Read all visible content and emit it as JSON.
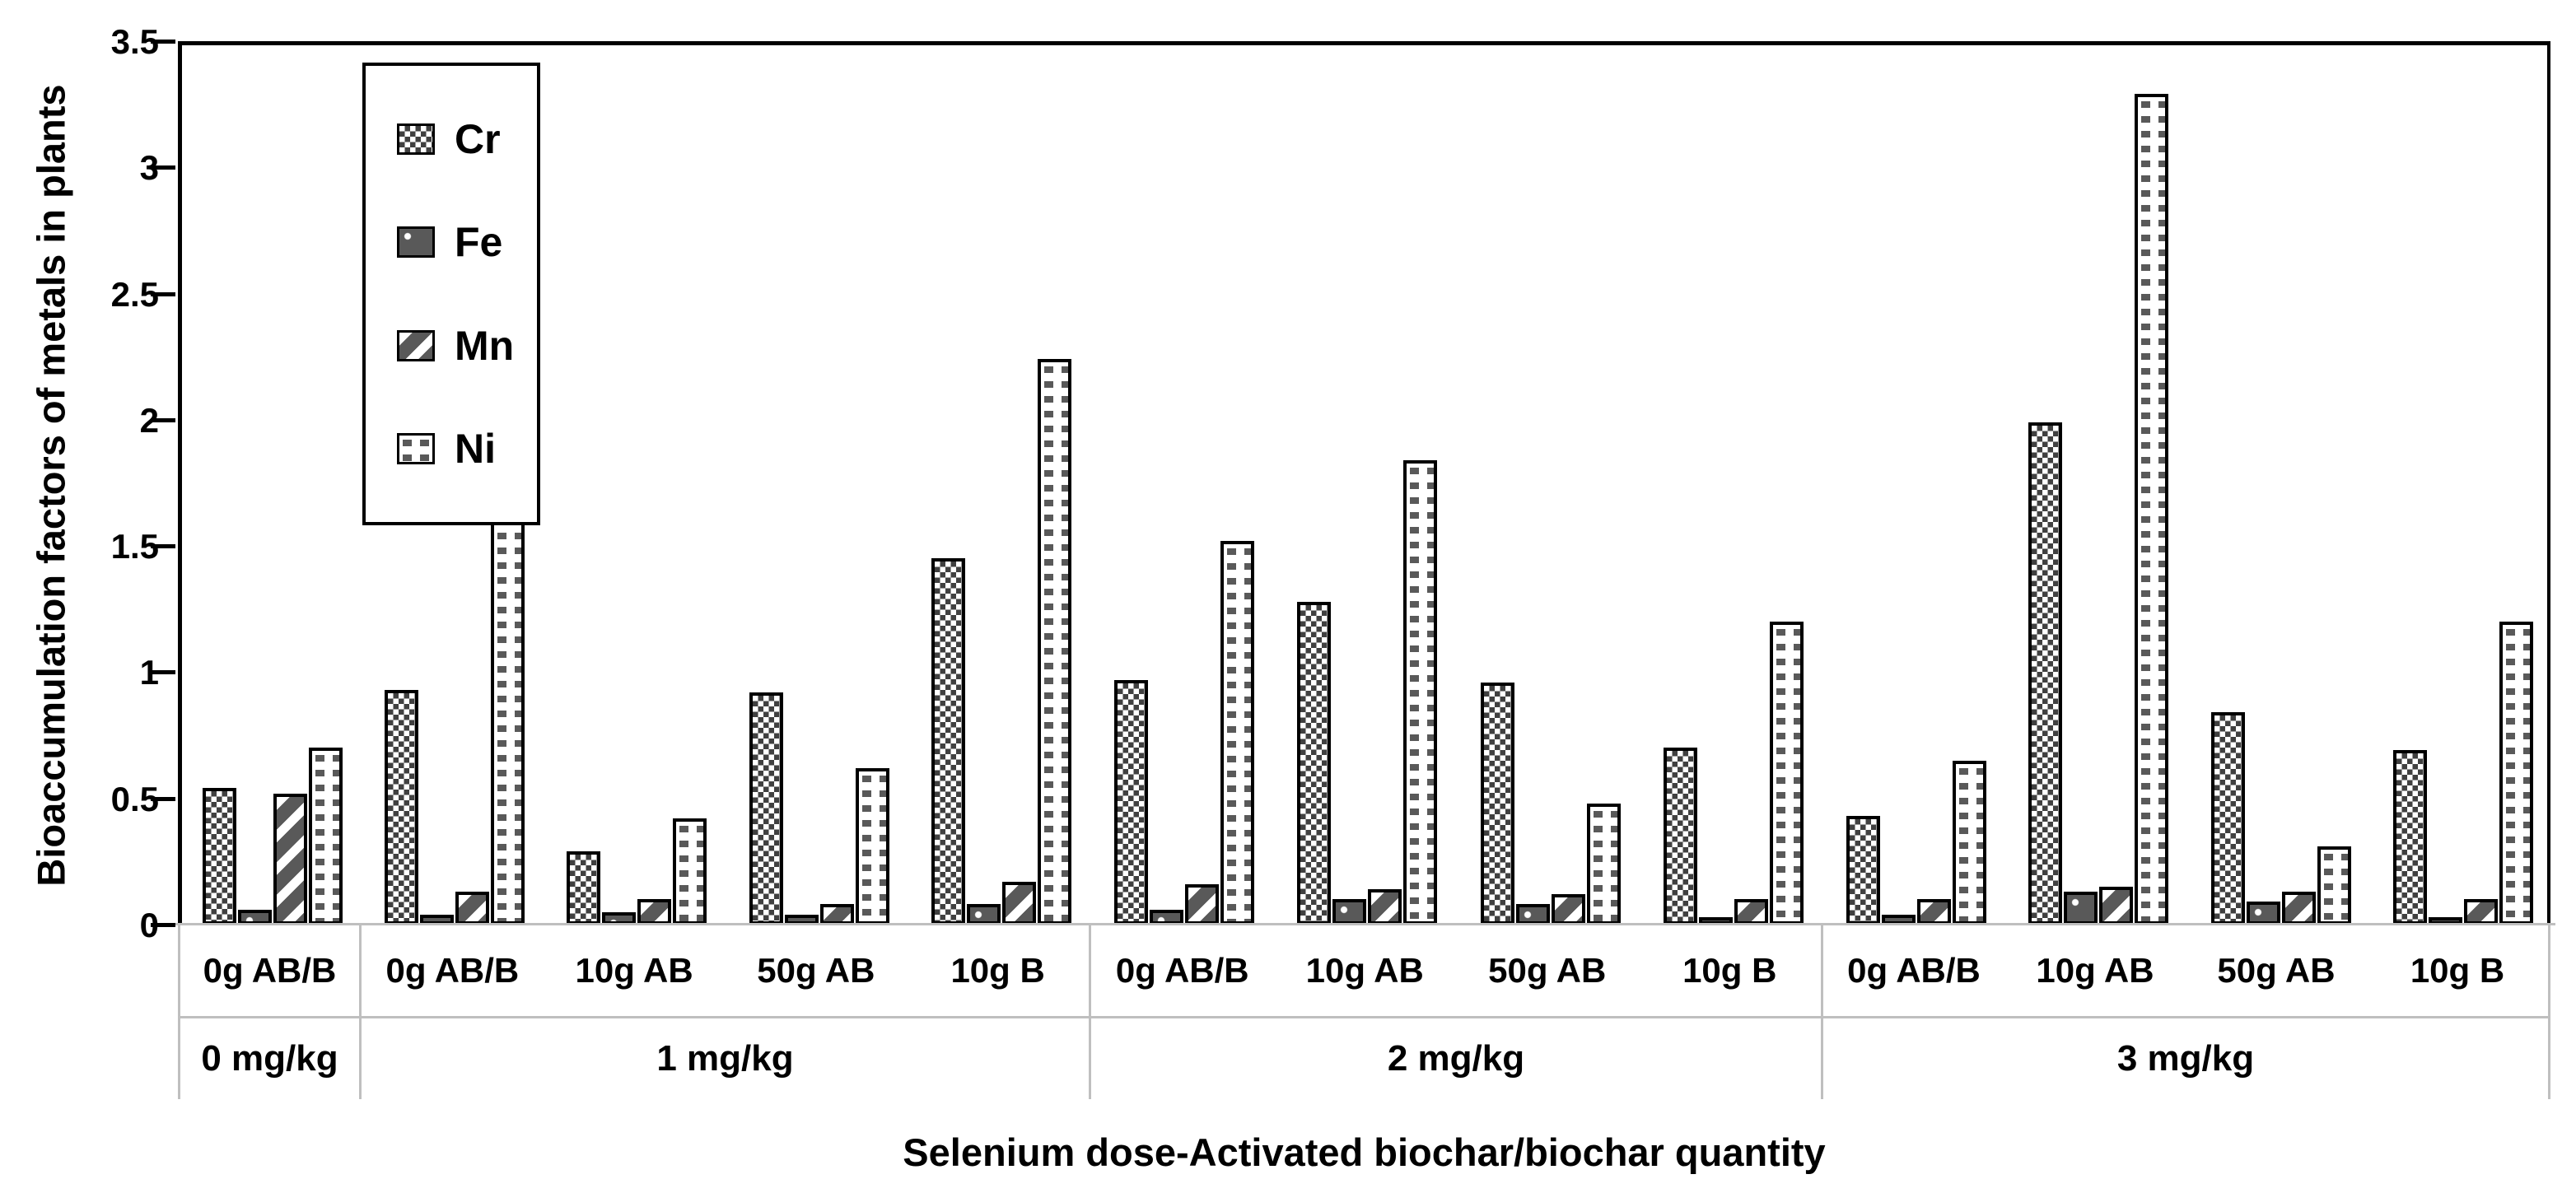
{
  "colors": {
    "black": "#000000",
    "dark_pattern_gray": "#595959",
    "checker_gray": "#404040",
    "grid_gray": "#bfbfbf",
    "background": "#ffffff"
  },
  "chart_data": {
    "type": "bar",
    "title": "",
    "xlabel": "Selenium dose-Activated biochar/biochar quantity",
    "ylabel": "Bioaccumulation factors of metals in plants",
    "ylim": [
      0,
      3.5
    ],
    "ytick_labels": [
      "3.5",
      "3",
      "2.5",
      "2",
      "1.5",
      "1",
      "0.5",
      "0"
    ],
    "ytick_values": [
      3.5,
      3,
      2.5,
      2,
      1.5,
      1,
      0.5,
      0
    ],
    "grid": "off",
    "legend_position": "upper-left-inside",
    "legend": [
      "Cr",
      "Fe",
      "Mn",
      "Ni"
    ],
    "legend_patterns": {
      "Cr": "fine-checkerboard",
      "Fe": "dark-gray-white-dots",
      "Mn": "thick-diagonal-stripes",
      "Ni": "sparse-square-dots"
    },
    "categories": [
      "0g AB/B",
      "0g AB/B",
      "10g AB",
      "50g AB",
      "10g B",
      "0g AB/B",
      "10g AB",
      "50g AB",
      "10g B",
      "0g AB/B",
      "10g AB",
      "50g AB",
      "10g B"
    ],
    "group_spans": [
      {
        "label": "0 mg/kg",
        "count": 1
      },
      {
        "label": "1 mg/kg",
        "count": 4
      },
      {
        "label": "2 mg/kg",
        "count": 4
      },
      {
        "label": "3 mg/kg",
        "count": 4
      }
    ],
    "series": [
      {
        "name": "Cr",
        "values": [
          0.54,
          0.93,
          0.29,
          0.92,
          1.45,
          0.97,
          1.28,
          0.96,
          0.7,
          0.43,
          1.99,
          0.84,
          0.69
        ]
      },
      {
        "name": "Fe",
        "values": [
          0.06,
          0.04,
          0.05,
          0.04,
          0.08,
          0.06,
          0.1,
          0.08,
          0.03,
          0.04,
          0.13,
          0.09,
          0.03
        ]
      },
      {
        "name": "Mn",
        "values": [
          0.52,
          0.13,
          0.1,
          0.08,
          0.17,
          0.16,
          0.14,
          0.12,
          0.1,
          0.1,
          0.15,
          0.13,
          0.1
        ]
      },
      {
        "name": "Ni",
        "values": [
          0.7,
          1.7,
          0.42,
          0.62,
          2.24,
          1.52,
          1.84,
          0.48,
          1.2,
          0.65,
          3.29,
          0.31,
          1.2
        ]
      }
    ]
  }
}
